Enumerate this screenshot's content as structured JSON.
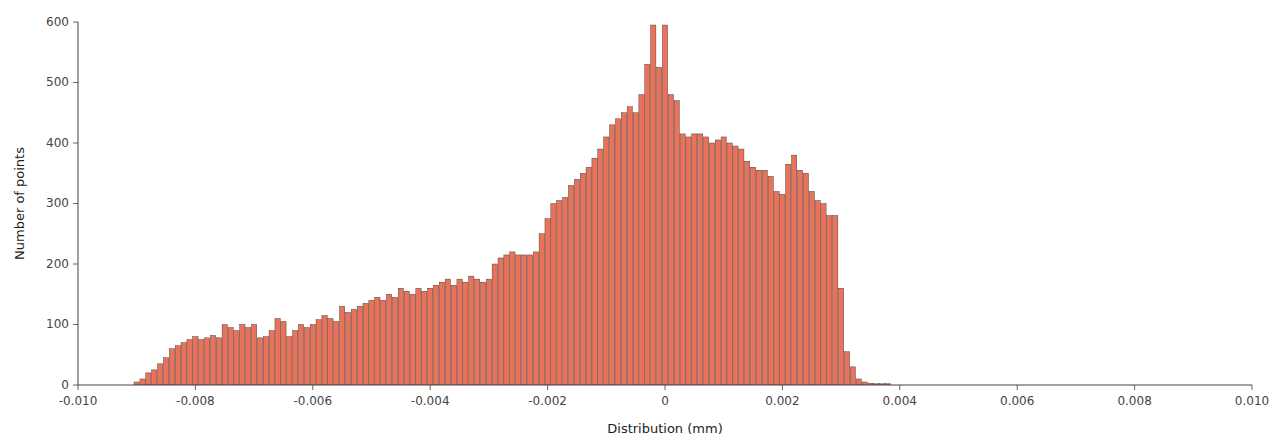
{
  "chart_data": {
    "type": "bar",
    "xlabel": "Distribution (mm)",
    "ylabel": "Number of points",
    "color": "#E8735A",
    "xlim": [
      -0.01,
      0.01
    ],
    "ylim": [
      0,
      600
    ],
    "xticks": [
      {
        "value": -0.01,
        "label": "-0.010"
      },
      -0.008,
      -0.006,
      -0.004,
      -0.002,
      0,
      0.002,
      0.004,
      0.006,
      0.008,
      {
        "value": 0.01,
        "label": "0.010"
      }
    ],
    "yticks": [
      0,
      100,
      200,
      300,
      400,
      500,
      600
    ],
    "x": [
      -0.009,
      -0.0089,
      -0.0088,
      -0.0087,
      -0.0086,
      -0.0085,
      -0.0084,
      -0.0083,
      -0.0082,
      -0.0081,
      -0.008,
      -0.0079,
      -0.0078,
      -0.0077,
      -0.0076,
      -0.0075,
      -0.0074,
      -0.0073,
      -0.0072,
      -0.0071,
      -0.007,
      -0.0069,
      -0.0068,
      -0.0067,
      -0.0066,
      -0.0065,
      -0.0064,
      -0.0063,
      -0.0062,
      -0.0061,
      -0.006,
      -0.0059,
      -0.0058,
      -0.0057,
      -0.0056,
      -0.0055,
      -0.0054,
      -0.0053,
      -0.0052,
      -0.0051,
      -0.005,
      -0.0049,
      -0.0048,
      -0.0047,
      -0.0046,
      -0.0045,
      -0.0044,
      -0.0043,
      -0.0042,
      -0.0041,
      -0.004,
      -0.0039,
      -0.0038,
      -0.0037,
      -0.0036,
      -0.0035,
      -0.0034,
      -0.0033,
      -0.0032,
      -0.0031,
      -0.003,
      -0.0029,
      -0.0028,
      -0.0027,
      -0.0026,
      -0.0025,
      -0.0024,
      -0.0023,
      -0.0022,
      -0.0021,
      -0.002,
      -0.0019,
      -0.0018,
      -0.0017,
      -0.0016,
      -0.0015,
      -0.0014,
      -0.0013,
      -0.0012,
      -0.0011,
      -0.001,
      -0.0009,
      -0.0008,
      -0.0007,
      -0.0006,
      -0.0005,
      -0.0004,
      -0.0003,
      -0.0002,
      -0.0001,
      0.0,
      0.0001,
      0.0002,
      0.0003,
      0.0004,
      0.0005,
      0.0006,
      0.0007,
      0.0008,
      0.0009,
      0.001,
      0.0011,
      0.0012,
      0.0013,
      0.0014,
      0.0015,
      0.0016,
      0.0017,
      0.0018,
      0.0019,
      0.002,
      0.0021,
      0.0022,
      0.0023,
      0.0024,
      0.0025,
      0.0026,
      0.0027,
      0.0028,
      0.0029,
      0.003,
      0.0031,
      0.0032,
      0.0033,
      0.0034,
      0.0035,
      0.0036,
      0.0037,
      0.0038
    ],
    "values": [
      5,
      10,
      20,
      25,
      35,
      45,
      60,
      65,
      70,
      75,
      80,
      75,
      78,
      82,
      78,
      100,
      95,
      90,
      100,
      95,
      100,
      78,
      80,
      90,
      110,
      105,
      80,
      90,
      100,
      95,
      100,
      108,
      115,
      110,
      105,
      130,
      120,
      125,
      130,
      135,
      140,
      145,
      140,
      150,
      145,
      160,
      155,
      150,
      160,
      155,
      160,
      165,
      170,
      175,
      165,
      175,
      170,
      180,
      175,
      170,
      175,
      200,
      210,
      215,
      220,
      215,
      215,
      215,
      220,
      250,
      275,
      300,
      305,
      310,
      330,
      340,
      350,
      360,
      375,
      390,
      410,
      430,
      440,
      450,
      460,
      450,
      480,
      530,
      595,
      525,
      595,
      480,
      470,
      415,
      410,
      415,
      415,
      410,
      400,
      405,
      410,
      400,
      395,
      390,
      370,
      360,
      355,
      355,
      345,
      320,
      315,
      365,
      380,
      355,
      350,
      320,
      305,
      300,
      280,
      280,
      160,
      55,
      30,
      10,
      5,
      3,
      2,
      2,
      2
    ]
  }
}
